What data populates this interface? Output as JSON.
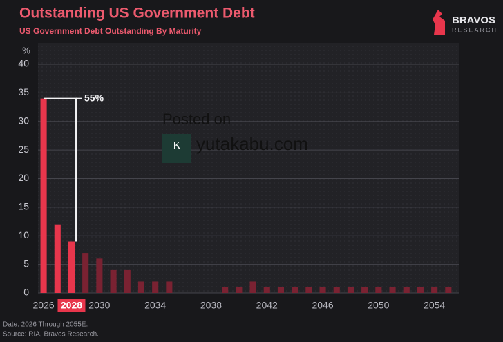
{
  "chart_data": {
    "type": "bar",
    "title": "Outstanding US Government Debt",
    "subtitle": "US Government Debt Outstanding By Maturity",
    "ylabel": "%",
    "brand": "BRAVOS",
    "brand_sub": "RESEARCH",
    "footer": [
      "Date: 2026 Through 2055E.",
      "Source: RIA, Bravos Research."
    ],
    "watermark": [
      "Posted on",
      "yutakabu.com"
    ],
    "x": [
      2026,
      2027,
      2028,
      2029,
      2030,
      2031,
      2032,
      2033,
      2034,
      2035,
      2036,
      2037,
      2038,
      2039,
      2040,
      2041,
      2042,
      2043,
      2044,
      2045,
      2046,
      2047,
      2048,
      2049,
      2050,
      2051,
      2052,
      2053,
      2054,
      2055
    ],
    "values": [
      34,
      12,
      9,
      7,
      6,
      4,
      4,
      2,
      2,
      2,
      0,
      0,
      0,
      1,
      1,
      2,
      1,
      1,
      1,
      1,
      1,
      1,
      1,
      1,
      1,
      1,
      1,
      1,
      1,
      1
    ],
    "colors": [
      "#e8364c",
      "#e8364c",
      "#e8364c",
      "#7a2232",
      "#7a2232",
      "#7a2232",
      "#7a2232",
      "#7a2232",
      "#7a2232",
      "#7a2232",
      "#7a2232",
      "#7a2232",
      "#7a2232",
      "#7a2232",
      "#7a2232",
      "#7a2232",
      "#7a2232",
      "#7a2232",
      "#7a2232",
      "#7a2232",
      "#7a2232",
      "#7a2232",
      "#7a2232",
      "#7a2232",
      "#7a2232",
      "#7a2232",
      "#7a2232",
      "#7a2232",
      "#7a2232",
      "#7a2232"
    ],
    "xlim": [
      2025.6,
      2055.8
    ],
    "xticks": [
      2026,
      2028,
      2030,
      2034,
      2038,
      2042,
      2046,
      2050,
      2054
    ],
    "highlight_xtick": 2028,
    "ylim": [
      0,
      40
    ],
    "yticks": [
      0,
      5,
      10,
      15,
      20,
      25,
      30,
      35,
      40
    ],
    "grid": true,
    "annotation": {
      "text": "55%",
      "from_x": 2026,
      "to_x": 2028
    }
  }
}
